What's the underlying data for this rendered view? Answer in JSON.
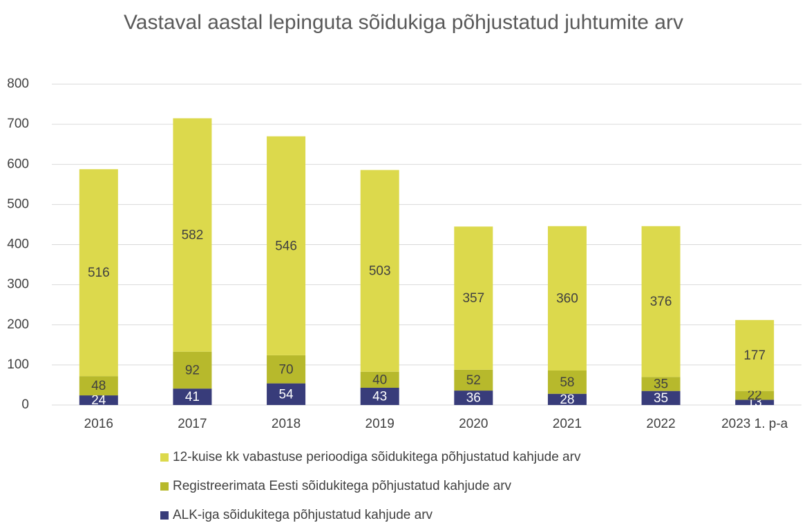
{
  "chart_data": {
    "type": "stacked_bar",
    "title": "Vastaval aastal lepinguta sõidukiga põhjustatud juhtumite arv",
    "categories": [
      "2016",
      "2017",
      "2018",
      "2019",
      "2020",
      "2021",
      "2022",
      "2023 1. p-a"
    ],
    "series": [
      {
        "name": "ALK-iga sõidukitega põhjustatud kahjude arv",
        "color": "#383c7a",
        "values": [
          24,
          41,
          54,
          43,
          36,
          28,
          35,
          13
        ]
      },
      {
        "name": "Registreerimata Eesti sõidukitega põhjustatud kahjude arv",
        "color": "#b7b92c",
        "values": [
          48,
          92,
          70,
          40,
          52,
          58,
          35,
          22
        ]
      },
      {
        "name": "12-kuise kk vabastuse perioodiga sõidukitega põhjustatud kahjude arv",
        "color": "#dcd94c",
        "values": [
          516,
          582,
          546,
          503,
          357,
          360,
          376,
          177
        ]
      }
    ],
    "ylim": [
      0,
      800
    ],
    "yticks": [
      0,
      100,
      200,
      300,
      400,
      500,
      600,
      700,
      800
    ],
    "grid": true,
    "legend": "bottom"
  }
}
